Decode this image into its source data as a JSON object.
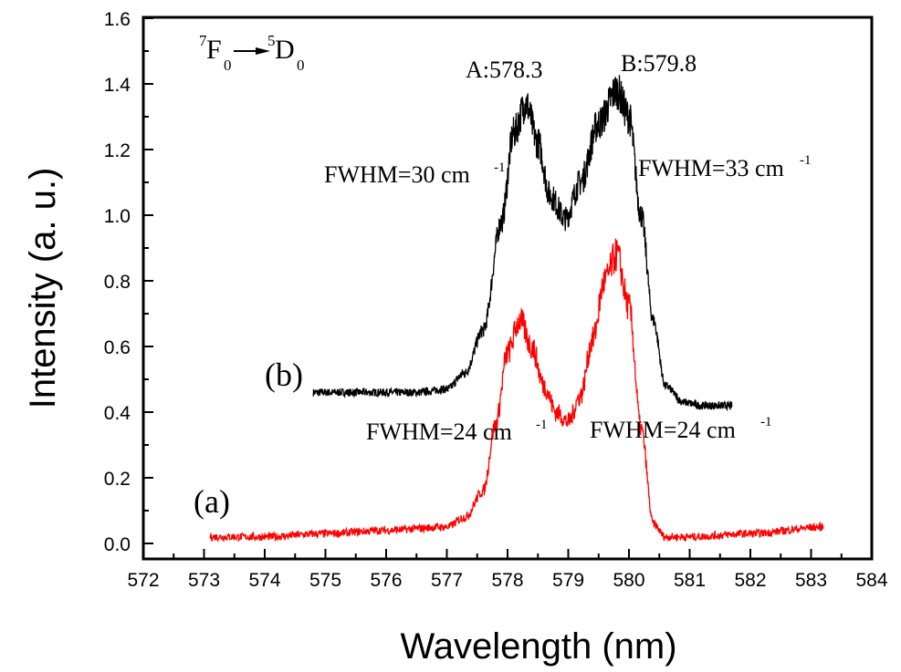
{
  "chart_data": {
    "type": "line",
    "title": "",
    "xlabel": "Wavelength (nm)",
    "ylabel": "Intensity (a. u.)",
    "xlim": [
      572,
      584
    ],
    "ylim": [
      0.0,
      1.6
    ],
    "xticks": [
      "572",
      "573",
      "574",
      "575",
      "576",
      "577",
      "578",
      "579",
      "580",
      "581",
      "582",
      "583",
      "584"
    ],
    "yticks": [
      "0.0",
      "0.2",
      "0.4",
      "0.6",
      "0.8",
      "1.0",
      "1.2",
      "1.4",
      "1.6"
    ],
    "grid": false,
    "legend": "none",
    "series": [
      {
        "name": "(b)",
        "color": "#000000",
        "x_range": [
          574.8,
          581.7
        ],
        "x": [
          574.8,
          575.5,
          576.5,
          577.0,
          577.3,
          577.6,
          577.9,
          578.1,
          578.3,
          578.5,
          578.7,
          578.95,
          579.2,
          579.5,
          579.8,
          580.0,
          580.2,
          580.4,
          580.6,
          580.9,
          581.2,
          581.7
        ],
        "y": [
          0.46,
          0.46,
          0.46,
          0.47,
          0.52,
          0.65,
          0.98,
          1.25,
          1.34,
          1.22,
          1.06,
          0.99,
          1.1,
          1.28,
          1.38,
          1.3,
          1.0,
          0.68,
          0.48,
          0.43,
          0.42,
          0.42
        ]
      },
      {
        "name": "(a)",
        "color": "#ff0000",
        "x_range": [
          573.1,
          583.2
        ],
        "x": [
          573.1,
          574.0,
          575.0,
          576.0,
          577.0,
          577.3,
          577.6,
          577.8,
          578.0,
          578.2,
          578.4,
          578.6,
          578.8,
          579.0,
          579.2,
          579.4,
          579.6,
          579.8,
          580.0,
          580.2,
          580.4,
          580.6,
          581.0,
          582.0,
          583.2
        ],
        "y": [
          0.02,
          0.02,
          0.03,
          0.04,
          0.05,
          0.08,
          0.16,
          0.36,
          0.58,
          0.68,
          0.6,
          0.48,
          0.4,
          0.37,
          0.45,
          0.62,
          0.8,
          0.88,
          0.72,
          0.35,
          0.06,
          0.02,
          0.02,
          0.03,
          0.05
        ]
      }
    ],
    "annotations": {
      "transition": {
        "base1": "F",
        "sup1": "7",
        "sub1": "0",
        "base2": "D",
        "sup2": "5",
        "sub2": "0"
      },
      "peak_a": "A:578.3",
      "peak_b": "B:579.8",
      "fwhm_b_left": "FWHM=30 cm",
      "fwhm_b_right": "FWHM=33 cm",
      "fwhm_a_left": "FWHM=24 cm",
      "fwhm_a_right": "FWHM=24 cm",
      "fwhm_unit_sup": "-1",
      "label_b": "(b)",
      "label_a": "(a)"
    }
  }
}
